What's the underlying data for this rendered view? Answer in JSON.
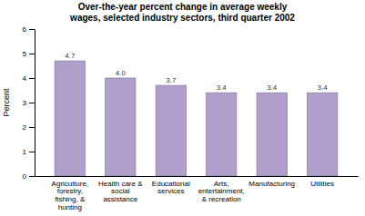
{
  "chart_data": {
    "type": "bar",
    "title": "Over-the-year percent change in average weekly\nwages, selected industry sectors, third quarter 2002",
    "categories": [
      "Agriculture,\nforestry,\nfishing, &\nhunting",
      "Health care &\nsocial\nassistance",
      "Educational\nservices",
      "Arts,\nentertainment,\n& recreation",
      "Manufacturing",
      "Utilities"
    ],
    "values": [
      4.7,
      4.0,
      3.7,
      3.4,
      3.4,
      3.4
    ],
    "value_labels": [
      "4.7",
      "4.0",
      "3.7",
      "3.4",
      "3.4",
      "3.4"
    ],
    "data_labels": true,
    "color": "#b09fcc",
    "ylabel": "Percent",
    "ylim": [
      0,
      6
    ],
    "yticks": [
      0,
      1,
      2,
      3,
      4,
      5,
      6
    ]
  }
}
